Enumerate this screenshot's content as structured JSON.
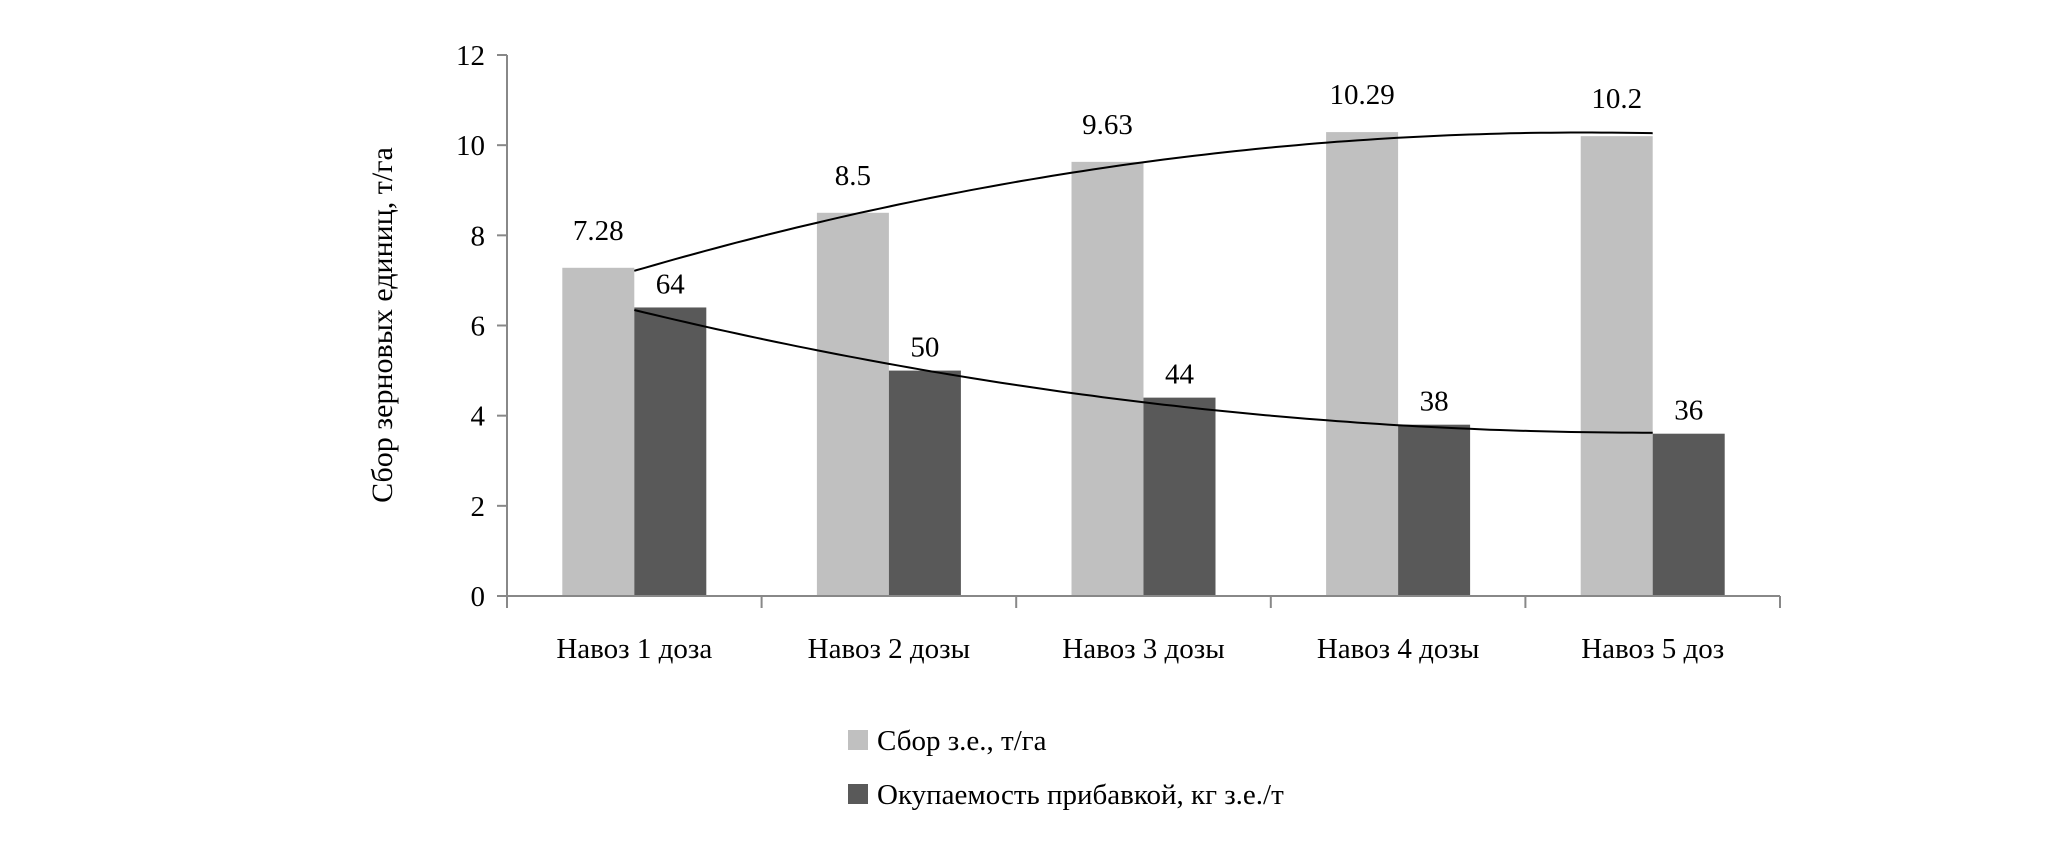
{
  "chart_data": {
    "type": "bar",
    "title": "",
    "xlabel": "",
    "ylabel": "Сбор зерновых единиц, т/га",
    "ylim": [
      0,
      12
    ],
    "yticks": [
      0,
      2,
      4,
      6,
      8,
      10,
      12
    ],
    "grid": false,
    "legend_position": "bottom",
    "categories": [
      "Навоз 1 доза",
      "Навоз 2 дозы",
      "Навоз 3 дозы",
      "Навоз 4 дозы",
      "Навоз 5 доз"
    ],
    "series": [
      {
        "name": "Сбор з.е., т/га",
        "values": [
          7.28,
          8.5,
          9.63,
          10.29,
          10.2
        ],
        "labels": [
          "7.28",
          "8.5",
          "9.63",
          "10.29",
          "10.2"
        ],
        "color": "#c0c0c0"
      },
      {
        "name": "Окупаемость прибавкой, кг з.е./т",
        "values": [
          6.4,
          5.0,
          4.4,
          3.8,
          3.6
        ],
        "labels": [
          "64",
          "50",
          "44",
          "38",
          "36"
        ],
        "color": "#595959"
      }
    ],
    "trendlines": "polynomial (order 2) for each series"
  }
}
